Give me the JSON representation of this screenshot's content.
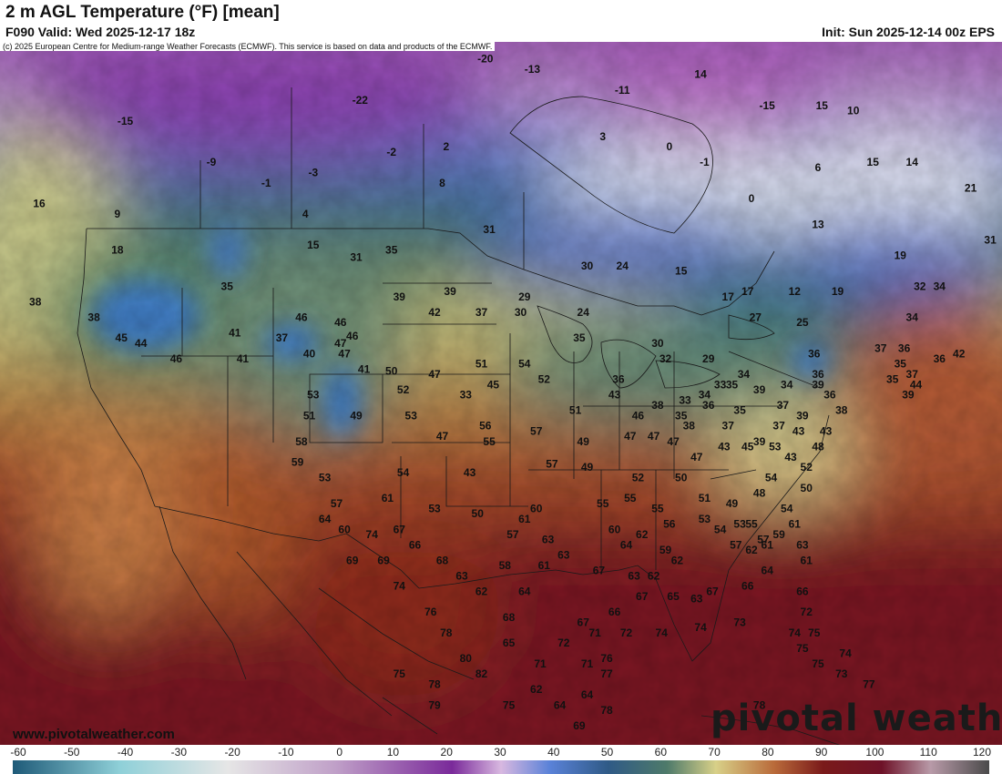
{
  "header": {
    "title": "2 m AGL Temperature (°F) [mean]",
    "valid": "F090 Valid: Wed 2025-12-17 18z",
    "init": "Init: Sun 2025-12-14 00z EPS"
  },
  "copyright": "(c) 2025 European Centre for Medium-range Weather Forecasts (ECMWF). This service is based on data and products of the ECMWF.",
  "footer": {
    "site": "www.pivotalweather.com",
    "brand_part1": "pivotal",
    "brand_part2": " weather"
  },
  "colorbar": {
    "labels": [
      "-60",
      "-50",
      "-40",
      "-30",
      "-20",
      "-10",
      "0",
      "10",
      "20",
      "30",
      "40",
      "50",
      "60",
      "70",
      "80",
      "90",
      "100",
      "110",
      "120"
    ],
    "min": -60,
    "max": 120
  },
  "map_labels": [
    {
      "v": "-15",
      "lon": -152.0,
      "lat": 65.0
    },
    {
      "v": "16",
      "lon": -163.0,
      "lat": 57.0
    },
    {
      "v": "9",
      "lon": -153.0,
      "lat": 56.0
    },
    {
      "v": "18",
      "lon": -153.0,
      "lat": 52.5
    },
    {
      "v": "38",
      "lon": -163.5,
      "lat": 47.5
    },
    {
      "v": "-9",
      "lon": -141.0,
      "lat": 61.0
    },
    {
      "v": "-1",
      "lon": -134.0,
      "lat": 59.0
    },
    {
      "v": "-3",
      "lon": -128.0,
      "lat": 60.0
    },
    {
      "v": "4",
      "lon": -129.0,
      "lat": 56.0
    },
    {
      "v": "15",
      "lon": -128.0,
      "lat": 53.0
    },
    {
      "v": "35",
      "lon": -139.0,
      "lat": 49.0
    },
    {
      "v": "38",
      "lon": -156.0,
      "lat": 46.0
    },
    {
      "v": "-22",
      "lon": -122.0,
      "lat": 67.0
    },
    {
      "v": "-2",
      "lon": -118.0,
      "lat": 62.0
    },
    {
      "v": "2",
      "lon": -111.0,
      "lat": 62.5
    },
    {
      "v": "8",
      "lon": -111.5,
      "lat": 59.0
    },
    {
      "v": "31",
      "lon": -122.5,
      "lat": 51.8
    },
    {
      "v": "35",
      "lon": -118.0,
      "lat": 52.5
    },
    {
      "v": "31",
      "lon": -105.5,
      "lat": 54.5
    },
    {
      "v": "-20",
      "lon": -106.0,
      "lat": 71.0
    },
    {
      "v": "-13",
      "lon": -100.0,
      "lat": 70.0
    },
    {
      "v": "-11",
      "lon": -88.5,
      "lat": 68.0
    },
    {
      "v": "14",
      "lon": -78.5,
      "lat": 69.5
    },
    {
      "v": "-15",
      "lon": -70.0,
      "lat": 66.5
    },
    {
      "v": "3",
      "lon": -91.0,
      "lat": 63.5
    },
    {
      "v": "0",
      "lon": -82.5,
      "lat": 62.5
    },
    {
      "v": "-1",
      "lon": -78.0,
      "lat": 61.0
    },
    {
      "v": "0",
      "lon": -72.0,
      "lat": 57.5
    },
    {
      "v": "30",
      "lon": -93.0,
      "lat": 51.0
    },
    {
      "v": "24",
      "lon": -88.5,
      "lat": 51.0
    },
    {
      "v": "15",
      "lon": -81.0,
      "lat": 50.5
    },
    {
      "v": "15",
      "lon": -63.0,
      "lat": 66.5
    },
    {
      "v": "10",
      "lon": -59.0,
      "lat": 66.0
    },
    {
      "v": "6",
      "lon": -63.5,
      "lat": 60.5
    },
    {
      "v": "15",
      "lon": -56.5,
      "lat": 61.0
    },
    {
      "v": "14",
      "lon": -51.5,
      "lat": 61.0
    },
    {
      "v": "21",
      "lon": -44.0,
      "lat": 58.5
    },
    {
      "v": "13",
      "lon": -63.5,
      "lat": 55.0
    },
    {
      "v": "17",
      "lon": -75.0,
      "lat": 48.0
    },
    {
      "v": "17",
      "lon": -72.5,
      "lat": 48.5
    },
    {
      "v": "12",
      "lon": -66.5,
      "lat": 48.5
    },
    {
      "v": "19",
      "lon": -61.0,
      "lat": 48.5
    },
    {
      "v": "19",
      "lon": -53.0,
      "lat": 52.0
    },
    {
      "v": "32",
      "lon": -50.5,
      "lat": 49.0
    },
    {
      "v": "34",
      "lon": -48.0,
      "lat": 49.0
    },
    {
      "v": "31",
      "lon": -41.5,
      "lat": 53.5
    },
    {
      "v": "34",
      "lon": -51.5,
      "lat": 46.0
    },
    {
      "v": "42",
      "lon": -45.5,
      "lat": 42.5
    },
    {
      "v": "37",
      "lon": -55.5,
      "lat": 43.0
    },
    {
      "v": "36",
      "lon": -52.5,
      "lat": 43.0
    },
    {
      "v": "36",
      "lon": -48.0,
      "lat": 42.0
    },
    {
      "v": "35",
      "lon": -53.0,
      "lat": 41.5
    },
    {
      "v": "37",
      "lon": -51.5,
      "lat": 40.5
    },
    {
      "v": "44",
      "lon": -51.0,
      "lat": 39.5
    },
    {
      "v": "35",
      "lon": -54.0,
      "lat": 40.0
    },
    {
      "v": "39",
      "lon": -52.0,
      "lat": 38.5
    },
    {
      "v": "45",
      "lon": -152.5,
      "lat": 44.0
    },
    {
      "v": "44",
      "lon": -150.0,
      "lat": 43.5
    },
    {
      "v": "46",
      "lon": -145.5,
      "lat": 42.0
    },
    {
      "v": "41",
      "lon": -138.0,
      "lat": 44.5
    },
    {
      "v": "41",
      "lon": -137.0,
      "lat": 42.0
    },
    {
      "v": "46",
      "lon": -129.5,
      "lat": 46.0
    },
    {
      "v": "37",
      "lon": -132.0,
      "lat": 44.0
    },
    {
      "v": "40",
      "lon": -128.5,
      "lat": 42.5
    },
    {
      "v": "47",
      "lon": -124.5,
      "lat": 43.5
    },
    {
      "v": "39",
      "lon": -117.0,
      "lat": 48.0
    },
    {
      "v": "39",
      "lon": -110.5,
      "lat": 48.5
    },
    {
      "v": "42",
      "lon": -112.5,
      "lat": 46.5
    },
    {
      "v": "37",
      "lon": -106.5,
      "lat": 46.5
    },
    {
      "v": "29",
      "lon": -101.0,
      "lat": 48.0
    },
    {
      "v": "30",
      "lon": -101.5,
      "lat": 46.5
    },
    {
      "v": "24",
      "lon": -93.5,
      "lat": 46.5
    },
    {
      "v": "46",
      "lon": -124.5,
      "lat": 45.5
    },
    {
      "v": "46",
      "lon": -123.0,
      "lat": 44.2
    },
    {
      "v": "47",
      "lon": -124.0,
      "lat": 42.5
    },
    {
      "v": "41",
      "lon": -121.5,
      "lat": 41.0
    },
    {
      "v": "50",
      "lon": -118.0,
      "lat": 40.8
    },
    {
      "v": "52",
      "lon": -116.5,
      "lat": 39.0
    },
    {
      "v": "47",
      "lon": -112.5,
      "lat": 40.5
    },
    {
      "v": "33",
      "lon": -108.5,
      "lat": 38.5
    },
    {
      "v": "45",
      "lon": -105.0,
      "lat": 39.5
    },
    {
      "v": "51",
      "lon": -106.5,
      "lat": 41.5
    },
    {
      "v": "54",
      "lon": -101.0,
      "lat": 41.5
    },
    {
      "v": "52",
      "lon": -98.5,
      "lat": 40.0
    },
    {
      "v": "35",
      "lon": -94.0,
      "lat": 44.0
    },
    {
      "v": "36",
      "lon": -89.0,
      "lat": 40.0
    },
    {
      "v": "43",
      "lon": -89.5,
      "lat": 38.5
    },
    {
      "v": "46",
      "lon": -86.5,
      "lat": 36.5
    },
    {
      "v": "38",
      "lon": -84.0,
      "lat": 37.5
    },
    {
      "v": "33",
      "lon": -80.5,
      "lat": 38.0
    },
    {
      "v": "34",
      "lon": -78.0,
      "lat": 38.5
    },
    {
      "v": "33",
      "lon": -76.0,
      "lat": 39.5
    },
    {
      "v": "35",
      "lon": -74.5,
      "lat": 39.5
    },
    {
      "v": "34",
      "lon": -73.0,
      "lat": 40.5
    },
    {
      "v": "39",
      "lon": -71.0,
      "lat": 39.0
    },
    {
      "v": "34",
      "lon": -67.5,
      "lat": 39.5
    },
    {
      "v": "39",
      "lon": -63.5,
      "lat": 39.5
    },
    {
      "v": "35",
      "lon": -81.0,
      "lat": 36.5
    },
    {
      "v": "36",
      "lon": -77.5,
      "lat": 37.5
    },
    {
      "v": "30",
      "lon": -84.0,
      "lat": 43.5
    },
    {
      "v": "32",
      "lon": -83.0,
      "lat": 42.0
    },
    {
      "v": "29",
      "lon": -77.5,
      "lat": 42.0
    },
    {
      "v": "27",
      "lon": -71.5,
      "lat": 46.0
    },
    {
      "v": "25",
      "lon": -65.5,
      "lat": 45.5
    },
    {
      "v": "36",
      "lon": -64.0,
      "lat": 42.5
    },
    {
      "v": "36",
      "lon": -63.5,
      "lat": 40.5
    },
    {
      "v": "36",
      "lon": -62.0,
      "lat": 38.5
    },
    {
      "v": "38",
      "lon": -60.5,
      "lat": 37.0
    },
    {
      "v": "37",
      "lon": -68.0,
      "lat": 37.5
    },
    {
      "v": "35",
      "lon": -73.5,
      "lat": 37.0
    },
    {
      "v": "38",
      "lon": -80.0,
      "lat": 35.5
    },
    {
      "v": "37",
      "lon": -75.0,
      "lat": 35.5
    },
    {
      "v": "37",
      "lon": -68.5,
      "lat": 35.5
    },
    {
      "v": "39",
      "lon": -65.5,
      "lat": 36.5
    },
    {
      "v": "39",
      "lon": -71.0,
      "lat": 34.0
    },
    {
      "v": "43",
      "lon": -67.0,
      "lat": 32.5
    },
    {
      "v": "53",
      "lon": -128.0,
      "lat": 38.5
    },
    {
      "v": "51",
      "lon": -128.5,
      "lat": 36.5
    },
    {
      "v": "49",
      "lon": -122.5,
      "lat": 36.5
    },
    {
      "v": "53",
      "lon": -115.5,
      "lat": 36.5
    },
    {
      "v": "47",
      "lon": -111.5,
      "lat": 34.5
    },
    {
      "v": "56",
      "lon": -106.0,
      "lat": 35.5
    },
    {
      "v": "55",
      "lon": -105.5,
      "lat": 34.0
    },
    {
      "v": "57",
      "lon": -99.5,
      "lat": 35.0
    },
    {
      "v": "51",
      "lon": -94.5,
      "lat": 37.0
    },
    {
      "v": "49",
      "lon": -93.5,
      "lat": 34.0
    },
    {
      "v": "57",
      "lon": -97.5,
      "lat": 31.8
    },
    {
      "v": "49",
      "lon": -93.0,
      "lat": 31.5
    },
    {
      "v": "47",
      "lon": -87.5,
      "lat": 34.5
    },
    {
      "v": "47",
      "lon": -84.5,
      "lat": 34.5
    },
    {
      "v": "47",
      "lon": -82.0,
      "lat": 34.0
    },
    {
      "v": "47",
      "lon": -79.0,
      "lat": 32.5
    },
    {
      "v": "43",
      "lon": -75.5,
      "lat": 33.5
    },
    {
      "v": "45",
      "lon": -72.5,
      "lat": 33.5
    },
    {
      "v": "53",
      "lon": -69.0,
      "lat": 33.5
    },
    {
      "v": "43",
      "lon": -66.0,
      "lat": 35.0
    },
    {
      "v": "43",
      "lon": -62.5,
      "lat": 35.0
    },
    {
      "v": "48",
      "lon": -63.5,
      "lat": 33.5
    },
    {
      "v": "52",
      "lon": -65.0,
      "lat": 31.5
    },
    {
      "v": "54",
      "lon": -69.5,
      "lat": 30.5
    },
    {
      "v": "48",
      "lon": -71.0,
      "lat": 29.0
    },
    {
      "v": "50",
      "lon": -65.0,
      "lat": 29.5
    },
    {
      "v": "54",
      "lon": -67.5,
      "lat": 27.5
    },
    {
      "v": "52",
      "lon": -86.5,
      "lat": 30.5
    },
    {
      "v": "50",
      "lon": -81.0,
      "lat": 30.5
    },
    {
      "v": "51",
      "lon": -78.0,
      "lat": 28.5
    },
    {
      "v": "49",
      "lon": -74.5,
      "lat": 28.0
    },
    {
      "v": "55",
      "lon": -72.0,
      "lat": 26.0
    },
    {
      "v": "58",
      "lon": -129.5,
      "lat": 34.0
    },
    {
      "v": "59",
      "lon": -130.0,
      "lat": 32.0
    },
    {
      "v": "53",
      "lon": -126.5,
      "lat": 30.5
    },
    {
      "v": "57",
      "lon": -125.0,
      "lat": 28.0
    },
    {
      "v": "54",
      "lon": -116.5,
      "lat": 31.0
    },
    {
      "v": "61",
      "lon": -118.5,
      "lat": 28.5
    },
    {
      "v": "67",
      "lon": -117.0,
      "lat": 25.5
    },
    {
      "v": "53",
      "lon": -112.5,
      "lat": 27.5
    },
    {
      "v": "43",
      "lon": -108.0,
      "lat": 31.0
    },
    {
      "v": "50",
      "lon": -107.0,
      "lat": 27.0
    },
    {
      "v": "57",
      "lon": -102.5,
      "lat": 25.0
    },
    {
      "v": "61",
      "lon": -101.0,
      "lat": 26.5
    },
    {
      "v": "60",
      "lon": -99.5,
      "lat": 27.5
    },
    {
      "v": "63",
      "lon": -98.0,
      "lat": 24.5
    },
    {
      "v": "55",
      "lon": -91.0,
      "lat": 28.0
    },
    {
      "v": "55",
      "lon": -87.5,
      "lat": 28.5
    },
    {
      "v": "55",
      "lon": -84.0,
      "lat": 27.5
    },
    {
      "v": "56",
      "lon": -82.5,
      "lat": 26.0
    },
    {
      "v": "53",
      "lon": -78.0,
      "lat": 26.5
    },
    {
      "v": "54",
      "lon": -76.0,
      "lat": 25.5
    },
    {
      "v": "53",
      "lon": -73.5,
      "lat": 26.0
    },
    {
      "v": "57",
      "lon": -70.5,
      "lat": 24.5
    },
    {
      "v": "59",
      "lon": -68.5,
      "lat": 25.0
    },
    {
      "v": "61",
      "lon": -66.5,
      "lat": 26.0
    },
    {
      "v": "63",
      "lon": -65.5,
      "lat": 24.0
    },
    {
      "v": "60",
      "lon": -89.5,
      "lat": 25.5
    },
    {
      "v": "62",
      "lon": -86.0,
      "lat": 25.0
    },
    {
      "v": "64",
      "lon": -88.0,
      "lat": 24.0
    },
    {
      "v": "59",
      "lon": -83.0,
      "lat": 23.5
    },
    {
      "v": "57",
      "lon": -74.0,
      "lat": 24.0
    },
    {
      "v": "62",
      "lon": -72.0,
      "lat": 23.5
    },
    {
      "v": "61",
      "lon": -70.0,
      "lat": 24.0
    },
    {
      "v": "64",
      "lon": -70.0,
      "lat": 21.5
    },
    {
      "v": "61",
      "lon": -65.0,
      "lat": 22.5
    },
    {
      "v": "64",
      "lon": -126.5,
      "lat": 26.5
    },
    {
      "v": "60",
      "lon": -124.0,
      "lat": 25.5
    },
    {
      "v": "74",
      "lon": -120.5,
      "lat": 25.0
    },
    {
      "v": "66",
      "lon": -115.0,
      "lat": 24.0
    },
    {
      "v": "69",
      "lon": -123.0,
      "lat": 22.5
    },
    {
      "v": "69",
      "lon": -119.0,
      "lat": 22.5
    },
    {
      "v": "68",
      "lon": -111.5,
      "lat": 22.5
    },
    {
      "v": "63",
      "lon": -109.0,
      "lat": 21.0
    },
    {
      "v": "58",
      "lon": -103.5,
      "lat": 22.0
    },
    {
      "v": "61",
      "lon": -98.5,
      "lat": 22.0
    },
    {
      "v": "63",
      "lon": -96.0,
      "lat": 23.0
    },
    {
      "v": "67",
      "lon": -91.5,
      "lat": 21.5
    },
    {
      "v": "63",
      "lon": -87.0,
      "lat": 21.0
    },
    {
      "v": "62",
      "lon": -84.5,
      "lat": 21.0
    },
    {
      "v": "62",
      "lon": -81.5,
      "lat": 22.5
    },
    {
      "v": "74",
      "lon": -117.0,
      "lat": 20.0
    },
    {
      "v": "62",
      "lon": -106.5,
      "lat": 19.5
    },
    {
      "v": "64",
      "lon": -101.0,
      "lat": 19.5
    },
    {
      "v": "67",
      "lon": -86.0,
      "lat": 19.0
    },
    {
      "v": "65",
      "lon": -82.0,
      "lat": 19.0
    },
    {
      "v": "67",
      "lon": -77.0,
      "lat": 19.5
    },
    {
      "v": "66",
      "lon": -72.5,
      "lat": 20.0
    },
    {
      "v": "66",
      "lon": -65.5,
      "lat": 19.5
    },
    {
      "v": "63",
      "lon": -79.0,
      "lat": 18.8
    },
    {
      "v": "76",
      "lon": -113.0,
      "lat": 17.5
    },
    {
      "v": "78",
      "lon": -111.0,
      "lat": 15.5
    },
    {
      "v": "68",
      "lon": -103.0,
      "lat": 17.0
    },
    {
      "v": "65",
      "lon": -103.0,
      "lat": 14.5
    },
    {
      "v": "72",
      "lon": -96.0,
      "lat": 14.5
    },
    {
      "v": "66",
      "lon": -89.5,
      "lat": 17.5
    },
    {
      "v": "67",
      "lon": -93.5,
      "lat": 16.5
    },
    {
      "v": "71",
      "lon": -92.0,
      "lat": 15.5
    },
    {
      "v": "72",
      "lon": -88.0,
      "lat": 15.5
    },
    {
      "v": "74",
      "lon": -83.5,
      "lat": 15.5
    },
    {
      "v": "74",
      "lon": -78.5,
      "lat": 16.0
    },
    {
      "v": "73",
      "lon": -73.5,
      "lat": 16.5
    },
    {
      "v": "72",
      "lon": -65.0,
      "lat": 17.5
    },
    {
      "v": "74",
      "lon": -66.5,
      "lat": 15.5
    },
    {
      "v": "75",
      "lon": -64.0,
      "lat": 15.5
    },
    {
      "v": "75",
      "lon": -65.5,
      "lat": 14.0
    },
    {
      "v": "75",
      "lon": -63.5,
      "lat": 12.5
    },
    {
      "v": "74",
      "lon": -60.0,
      "lat": 13.5
    },
    {
      "v": "80",
      "lon": -108.5,
      "lat": 13.0
    },
    {
      "v": "71",
      "lon": -99.0,
      "lat": 12.5
    },
    {
      "v": "71",
      "lon": -93.0,
      "lat": 12.5
    },
    {
      "v": "76",
      "lon": -90.5,
      "lat": 13.0
    },
    {
      "v": "77",
      "lon": -90.5,
      "lat": 11.5
    },
    {
      "v": "75",
      "lon": -117.0,
      "lat": 11.5
    },
    {
      "v": "78",
      "lon": -112.5,
      "lat": 10.5
    },
    {
      "v": "82",
      "lon": -106.5,
      "lat": 11.5
    },
    {
      "v": "79",
      "lon": -112.5,
      "lat": 8.5
    },
    {
      "v": "75",
      "lon": -103.0,
      "lat": 8.5
    },
    {
      "v": "62",
      "lon": -99.5,
      "lat": 10.0
    },
    {
      "v": "64",
      "lon": -96.5,
      "lat": 8.5
    },
    {
      "v": "64",
      "lon": -93.0,
      "lat": 9.5
    },
    {
      "v": "78",
      "lon": -90.5,
      "lat": 8.0
    },
    {
      "v": "69",
      "lon": -94.0,
      "lat": 6.5
    },
    {
      "v": "73",
      "lon": -60.5,
      "lat": 11.5
    },
    {
      "v": "77",
      "lon": -57.0,
      "lat": 10.5
    },
    {
      "v": "78",
      "lon": -71.0,
      "lat": 8.5
    }
  ]
}
